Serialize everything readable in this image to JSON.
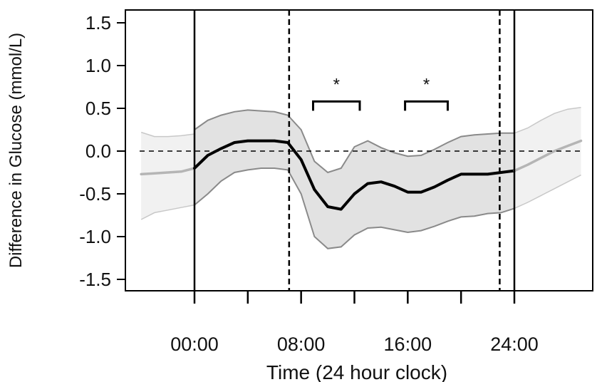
{
  "chart_data": {
    "type": "line",
    "title": "",
    "xlabel": "Time (24 hour clock)",
    "ylabel": "Difference in Glucose (mmol/L)",
    "xlim": [
      -4,
      29.5
    ],
    "ylim": [
      -1.62,
      1.65
    ],
    "x_ticks": [
      0,
      4,
      8,
      12,
      16,
      20,
      24
    ],
    "x_tick_labels": [
      {
        "x": 0,
        "label": "00:00"
      },
      {
        "x": 8,
        "label": "08:00"
      },
      {
        "x": 16,
        "label": "16:00"
      },
      {
        "x": 24,
        "label": "24:00"
      }
    ],
    "y_ticks": [
      1.5,
      1.0,
      0.5,
      0.0,
      -0.5,
      -1.0,
      -1.5
    ],
    "y_tick_labels": [
      "1.5",
      "1.0",
      "0.5",
      "0.0",
      "-0.5",
      "-1.0",
      "-1.5"
    ],
    "grid": false,
    "reference_lines": {
      "solid_vertical_x": [
        0,
        24
      ],
      "dashed_vertical_x": [
        7.1,
        22.9
      ],
      "dashed_horizontal_y": 0.0
    },
    "significance_brackets": [
      {
        "x_start": 8.9,
        "x_end": 12.4,
        "y": 0.58,
        "label": "*"
      },
      {
        "x_start": 15.8,
        "x_end": 19.0,
        "y": 0.58,
        "label": "*"
      }
    ],
    "series": [
      {
        "x": [
          -4,
          -3,
          -2,
          -1,
          0
        ],
        "y": [
          -0.27,
          -0.26,
          -0.25,
          -0.24,
          -0.2
        ],
        "lower": [
          -0.8,
          -0.72,
          -0.69,
          -0.66,
          -0.63
        ],
        "upper": [
          0.22,
          0.17,
          0.17,
          0.18,
          0.2
        ]
      },
      {
        "x": [
          0,
          1,
          2,
          3,
          4,
          5,
          6,
          7,
          8,
          9,
          10,
          11,
          12,
          13,
          14,
          15,
          16,
          17,
          18,
          19,
          20,
          21,
          22,
          23,
          24
        ],
        "y": [
          -0.2,
          -0.05,
          0.03,
          0.1,
          0.12,
          0.12,
          0.12,
          0.1,
          -0.1,
          -0.45,
          -0.65,
          -0.68,
          -0.5,
          -0.38,
          -0.36,
          -0.41,
          -0.48,
          -0.48,
          -0.42,
          -0.34,
          -0.27,
          -0.27,
          -0.27,
          -0.25,
          -0.23
        ],
        "lower": [
          -0.63,
          -0.5,
          -0.35,
          -0.25,
          -0.22,
          -0.2,
          -0.2,
          -0.22,
          -0.5,
          -1.0,
          -1.14,
          -1.12,
          -0.98,
          -0.9,
          -0.89,
          -0.92,
          -0.95,
          -0.93,
          -0.88,
          -0.82,
          -0.77,
          -0.76,
          -0.73,
          -0.72,
          -0.67
        ],
        "upper": [
          0.25,
          0.36,
          0.42,
          0.46,
          0.48,
          0.47,
          0.46,
          0.42,
          0.25,
          -0.12,
          -0.25,
          -0.2,
          0.05,
          0.12,
          0.04,
          -0.02,
          -0.06,
          -0.05,
          0.02,
          0.1,
          0.17,
          0.19,
          0.2,
          0.21,
          0.21
        ]
      },
      {
        "x": [
          24,
          25,
          26,
          27,
          28,
          29
        ],
        "y": [
          -0.23,
          -0.16,
          -0.08,
          0.0,
          0.06,
          0.12
        ],
        "lower": [
          -0.67,
          -0.6,
          -0.52,
          -0.44,
          -0.36,
          -0.28
        ],
        "upper": [
          0.21,
          0.27,
          0.36,
          0.44,
          0.49,
          0.51
        ]
      }
    ]
  }
}
